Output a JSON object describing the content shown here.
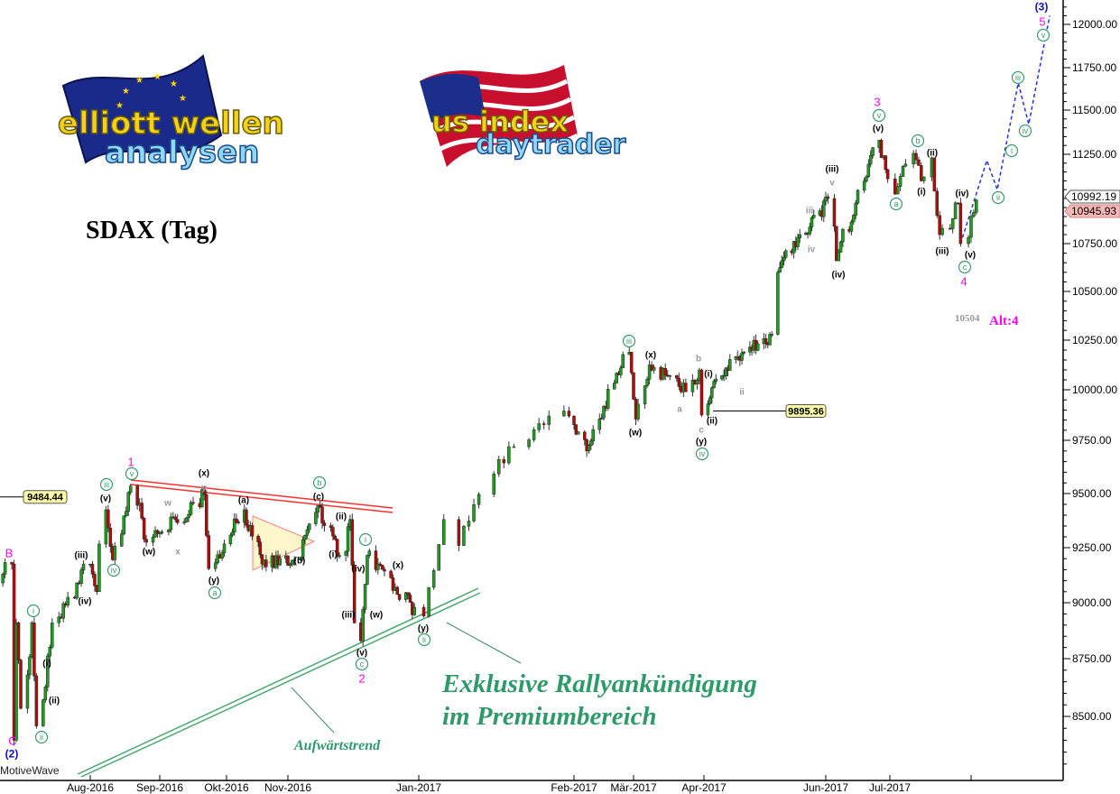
{
  "chart_title": "SDAX (Tag)",
  "watermark": "MotiveWave",
  "promo": {
    "line1": "Exklusive Rallyankündigung",
    "line2": "im Premiumbereich"
  },
  "trendline_label": "Aufwärtstrend",
  "logos": {
    "left": "elliott wellen analysen",
    "right": "us index daytrader"
  },
  "colors": {
    "up": "#1e9e1e",
    "down": "#b40a0a",
    "wave_major": "#ff00ff",
    "wave_degree_blue": "#1010c0",
    "wave_circled": "#3a9a6a",
    "resistance": "#ff3030",
    "support": "#4aa870",
    "projection": "#2233dd"
  },
  "chart_data": {
    "type": "candlestick",
    "title": "SDAX (Tag)",
    "y_scale": "log",
    "ylim": [
      8250,
      12150
    ],
    "y_ticks": [
      "12000.00",
      "11750.00",
      "11500.00",
      "11250.00",
      "10750.00",
      "10500.00",
      "10250.00",
      "10000.00",
      "9750.00",
      "9500.00",
      "9250.00",
      "9000.00",
      "8750.00",
      "8500.00"
    ],
    "x_ticks": [
      "Aug-2016",
      "Sep-2016",
      "Okt-2016",
      "Nov-2016",
      "Jan-2017",
      "Feb-2017",
      "Mär-2017",
      "Apr-2017",
      "Jun-2017",
      "Jul-2017",
      ""
    ],
    "grid": false,
    "pivots": [
      [
        "2016-06-22",
        9090
      ],
      [
        "2016-06-27",
        9175
      ],
      [
        "2016-06-28",
        8400
      ],
      [
        "2016-06-29",
        8910
      ],
      [
        "2016-07-01",
        8535
      ],
      [
        "2016-07-06",
        8910
      ],
      [
        "2016-07-08",
        8460
      ],
      [
        "2016-07-15",
        8910
      ],
      [
        "2016-08-01",
        9175
      ],
      [
        "2016-08-04",
        9050
      ],
      [
        "2016-08-08",
        9425
      ],
      [
        "2016-08-11",
        9195
      ],
      [
        "2016-08-19",
        9535
      ],
      [
        "2016-08-26",
        9275
      ],
      [
        "2016-09-08",
        9380
      ],
      [
        "2016-09-21",
        9495
      ],
      [
        "2016-09-23",
        9155
      ],
      [
        "2016-10-10",
        9425
      ],
      [
        "2016-10-19",
        9175
      ],
      [
        "2016-11-04",
        9195
      ],
      [
        "2016-11-15",
        9445
      ],
      [
        "2016-11-25",
        9215
      ],
      [
        "2016-11-30",
        9380
      ],
      [
        "2016-12-02",
        8910
      ],
      [
        "2016-12-05",
        8830
      ],
      [
        "2016-12-08",
        9215
      ],
      [
        "2016-12-21",
        9070
      ],
      [
        "2017-01-02",
        8940
      ],
      [
        "2017-01-06",
        9380
      ],
      [
        "2017-01-09",
        9260
      ],
      [
        "2017-01-17",
        9660
      ],
      [
        "2017-01-20",
        9720
      ],
      [
        "2017-01-30",
        9895
      ],
      [
        "2017-02-07",
        9700
      ],
      [
        "2017-02-27",
        10190
      ],
      [
        "2017-03-02",
        9855
      ],
      [
        "2017-03-08",
        10125
      ],
      [
        "2017-03-24",
        9990
      ],
      [
        "2017-03-30",
        10100
      ],
      [
        "2017-03-31",
        9875
      ],
      [
        "2017-04-05",
        10010
      ],
      [
        "2017-04-21",
        10190
      ],
      [
        "2017-05-05",
        10280
      ],
      [
        "2017-05-08",
        10600
      ],
      [
        "2017-05-19",
        10800
      ],
      [
        "2017-06-02",
        11000
      ],
      [
        "2017-06-06",
        10660
      ],
      [
        "2017-06-26",
        11330
      ],
      [
        "2017-07-03",
        11025
      ],
      [
        "2017-07-10",
        11255
      ],
      [
        "2017-07-13",
        11100
      ],
      [
        "2017-07-17",
        11230
      ],
      [
        "2017-07-20",
        10800
      ],
      [
        "2017-07-27",
        10975
      ],
      [
        "2017-07-28",
        10750
      ],
      [
        "2017-08-03",
        10992.19
      ]
    ],
    "projection": [
      [
        "2017-07-28",
        10750
      ],
      [
        "2017-08-07",
        11215
      ],
      [
        "2017-08-11",
        11050
      ],
      [
        "2017-08-19",
        11660
      ],
      [
        "2017-08-23",
        11420
      ],
      [
        "2017-08-31",
        12050
      ]
    ],
    "price_markers": [
      {
        "label": "9484.44",
        "value": 9484.44
      },
      {
        "label": "9895.36",
        "value": 9895.36
      }
    ],
    "last_prices": [
      {
        "label": "10992.19",
        "value": 10992.19
      },
      {
        "label": "10945.93",
        "value": 10945.93
      }
    ],
    "alt_note": {
      "value": "10504",
      "label": "Alt:4"
    },
    "wave_labels": {
      "major": [
        "B",
        "C",
        "1",
        "2",
        "3",
        "4",
        "5"
      ],
      "blue": [
        "(2)",
        "(3)"
      ],
      "circled": [
        "i",
        "ii",
        "iii",
        "iv",
        "v",
        "a",
        "b",
        "c",
        "i",
        "ii",
        "iii",
        "iv",
        "v",
        "a",
        "b",
        "c",
        "i",
        "ii",
        "iii",
        "iv",
        "v"
      ],
      "minor": [
        "(i)",
        "(ii)",
        "(iii)",
        "(iv)",
        "(v)",
        "(w)",
        "(x)",
        "(y)",
        "(a)",
        "(c)",
        "(b)",
        "(ii)",
        "(i)",
        "(iv)",
        "(iii)",
        "(w)",
        "(v)",
        "(x)",
        "(y)",
        "(x)",
        "(w)",
        "(i)",
        "(ii)",
        "(y)",
        "(iii)",
        "(iv)",
        "(v)",
        "(i)",
        "(ii)",
        "(iv)",
        "(iii)",
        "(v)"
      ],
      "sub": [
        "w",
        "y",
        "x",
        "a",
        "b",
        "c",
        "i",
        "ii",
        "iii",
        "iv",
        "v"
      ]
    }
  }
}
